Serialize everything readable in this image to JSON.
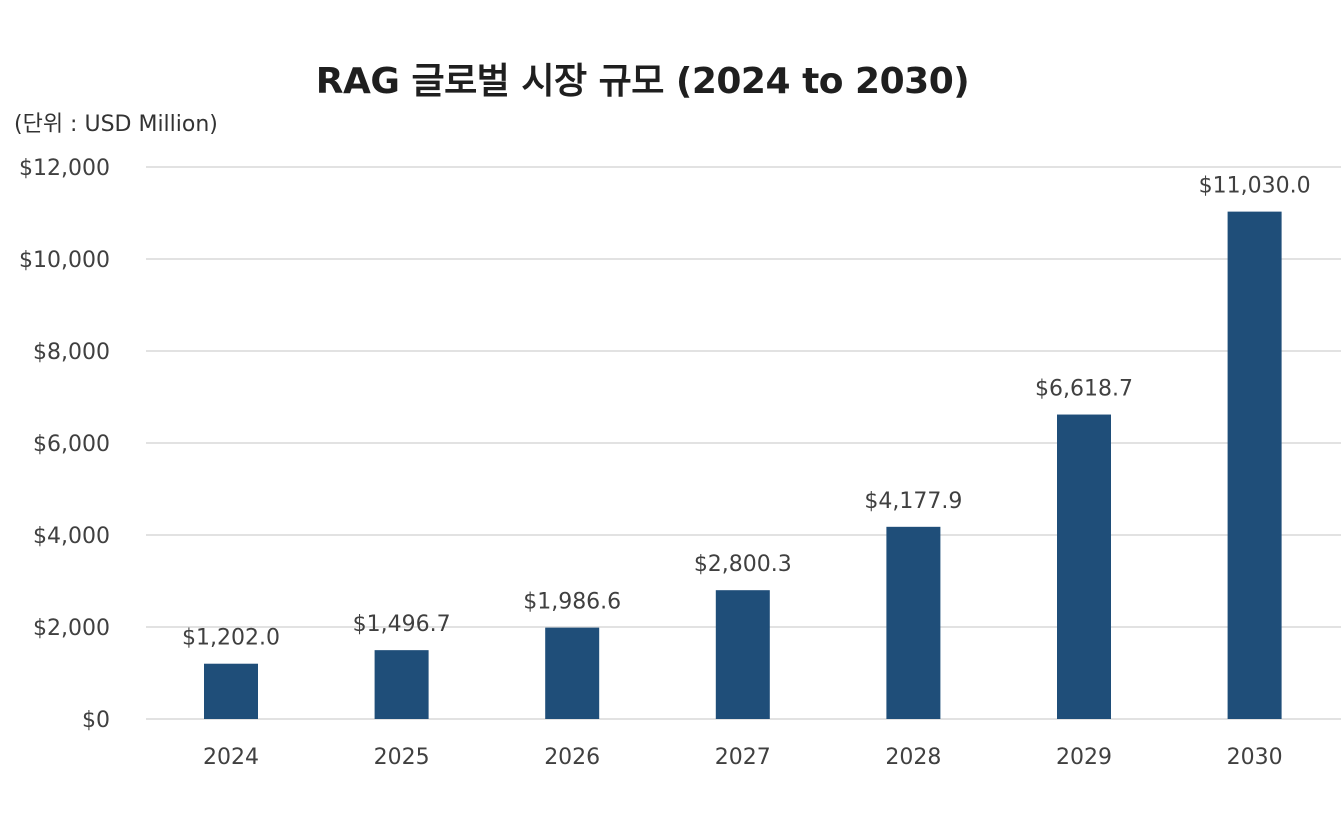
{
  "chart_data": {
    "type": "bar",
    "title": "RAG 글로벌 시장 규모 (2024 to 2030)",
    "unit_label": "(단위 : USD Million)",
    "categories": [
      "2024",
      "2025",
      "2026",
      "2027",
      "2028",
      "2029",
      "2030"
    ],
    "values": [
      1202.0,
      1496.7,
      1986.6,
      2800.3,
      4177.9,
      6618.7,
      11030.0
    ],
    "data_labels": [
      "$1,202.0",
      "$1,496.7",
      "$1,986.6",
      "$2,800.3",
      "$4,177.9",
      "$6,618.7",
      "$11,030.0"
    ],
    "y_ticks": [
      0,
      2000,
      4000,
      6000,
      8000,
      10000,
      12000
    ],
    "y_tick_labels": [
      "$0",
      "$2,000",
      "$4,000",
      "$6,000",
      "$8,000",
      "$10,000",
      "$12,000"
    ],
    "ylim": [
      0,
      12000
    ],
    "xlabel": "",
    "ylabel": "",
    "grid": true,
    "legend": "none",
    "bar_color": "#1f4e79",
    "grid_color": "#d9d9d9"
  }
}
